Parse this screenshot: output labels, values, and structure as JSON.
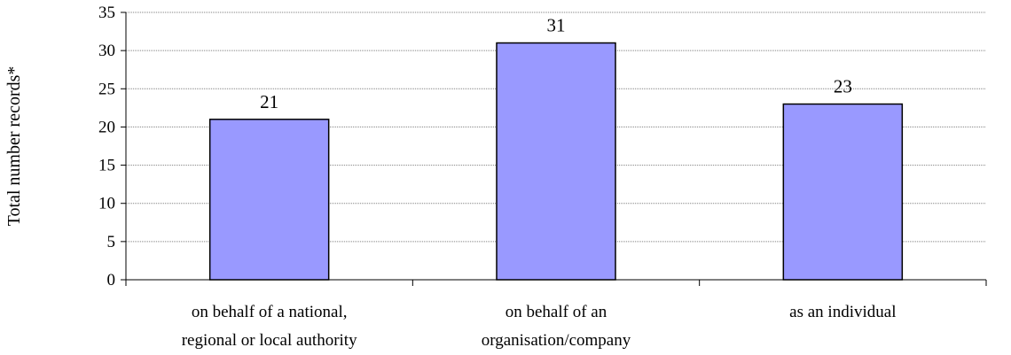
{
  "chart_data": {
    "type": "bar",
    "title": "",
    "xlabel": "",
    "ylabel": "Total number records*",
    "categories": [
      [
        "on behalf of a national,",
        "regional or local authority"
      ],
      [
        "on behalf of an",
        "organisation/company"
      ],
      [
        "as an individual"
      ]
    ],
    "values": [
      21,
      31,
      23
    ],
    "data_labels": [
      "21",
      "31",
      "23"
    ],
    "ylim": [
      0,
      35
    ],
    "yticks": [
      0,
      5,
      10,
      15,
      20,
      25,
      30,
      35
    ],
    "grid": true,
    "legend": "none",
    "colors": {
      "bar_fill": "#9999ff",
      "bar_stroke": "#000000",
      "gridline": "#808080",
      "axis": "#000000"
    }
  }
}
